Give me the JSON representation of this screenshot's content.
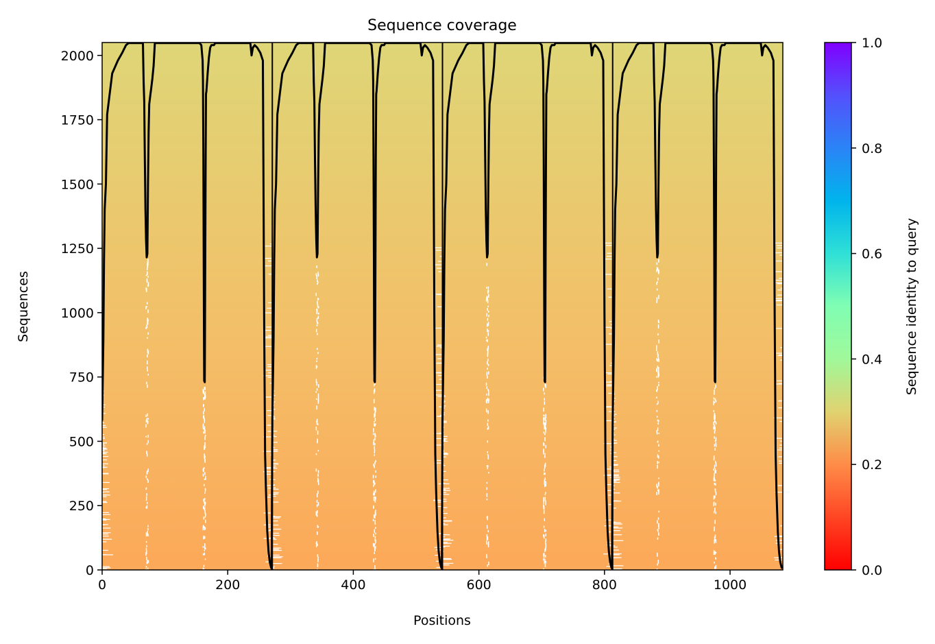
{
  "chart_data": {
    "type": "heatmap",
    "title": "Sequence coverage",
    "xlabel": "Positions",
    "ylabel": "Sequences",
    "xlim": [
      0,
      1084
    ],
    "ylim": [
      0,
      2050
    ],
    "xticks": [
      0,
      200,
      400,
      600,
      800,
      1000
    ],
    "yticks": [
      0,
      250,
      500,
      750,
      1000,
      1250,
      1500,
      1750,
      2000
    ],
    "xtick_labels": [
      "0",
      "200",
      "400",
      "600",
      "800",
      "1000"
    ],
    "ytick_labels": [
      "0",
      "250",
      "500",
      "750",
      "1000",
      "1250",
      "1500",
      "1750",
      "2000"
    ],
    "chain_boundaries": [
      271,
      542,
      813
    ],
    "colorbar": {
      "label": "Sequence identity to query",
      "colormap": "rainbow_r",
      "range": [
        0.0,
        1.0
      ],
      "ticks": [
        0.0,
        0.2,
        0.4,
        0.6,
        0.8,
        1.0
      ],
      "tick_labels": [
        "0.0",
        "0.2",
        "0.4",
        "0.6",
        "0.8",
        "1.0"
      ]
    },
    "identity_range": {
      "bottom_rows": 0.24,
      "top_rows": 0.31
    },
    "coverage_line": {
      "name": "",
      "color": "#000000",
      "segment_length": 271,
      "repeats": 4,
      "segment_profile": [
        [
          0,
          580
        ],
        [
          2,
          900
        ],
        [
          3,
          1200
        ],
        [
          4,
          1400
        ],
        [
          6,
          1500
        ],
        [
          8,
          1770
        ],
        [
          12,
          1850
        ],
        [
          16,
          1930
        ],
        [
          25,
          1980
        ],
        [
          32,
          2010
        ],
        [
          38,
          2040
        ],
        [
          42,
          2048
        ],
        [
          55,
          2048
        ],
        [
          62,
          2048
        ],
        [
          65,
          2048
        ],
        [
          66,
          1900
        ],
        [
          67,
          1820
        ],
        [
          68,
          1600
        ],
        [
          69,
          1400
        ],
        [
          70,
          1280
        ],
        [
          71,
          1215
        ],
        [
          72,
          1230
        ],
        [
          73,
          1500
        ],
        [
          74,
          1700
        ],
        [
          75,
          1810
        ],
        [
          77,
          1850
        ],
        [
          78,
          1870
        ],
        [
          80,
          1910
        ],
        [
          82,
          1960
        ],
        [
          84,
          2048
        ],
        [
          100,
          2048
        ],
        [
          130,
          2048
        ],
        [
          155,
          2048
        ],
        [
          158,
          2040
        ],
        [
          160,
          1980
        ],
        [
          160.6,
          1900
        ],
        [
          161.2,
          1600
        ],
        [
          161.8,
          1200
        ],
        [
          162.2,
          900
        ],
        [
          162.6,
          735
        ],
        [
          163.4,
          730
        ],
        [
          163.8,
          900
        ],
        [
          164.2,
          1200
        ],
        [
          164.8,
          1600
        ],
        [
          165.4,
          1850
        ],
        [
          166,
          1860
        ],
        [
          168,
          1930
        ],
        [
          170,
          1990
        ],
        [
          172,
          2030
        ],
        [
          174,
          2040
        ],
        [
          178,
          2040
        ],
        [
          180,
          2048
        ],
        [
          220,
          2048
        ],
        [
          236,
          2048
        ],
        [
          238,
          2000
        ],
        [
          240,
          2030
        ],
        [
          243,
          2040
        ],
        [
          247,
          2030
        ],
        [
          252,
          2010
        ],
        [
          256,
          1980
        ],
        [
          258,
          1000
        ],
        [
          259.5,
          450
        ],
        [
          261,
          300
        ],
        [
          263,
          150
        ],
        [
          265,
          70
        ],
        [
          267,
          30
        ],
        [
          269,
          10
        ],
        [
          270,
          5
        ]
      ]
    }
  }
}
